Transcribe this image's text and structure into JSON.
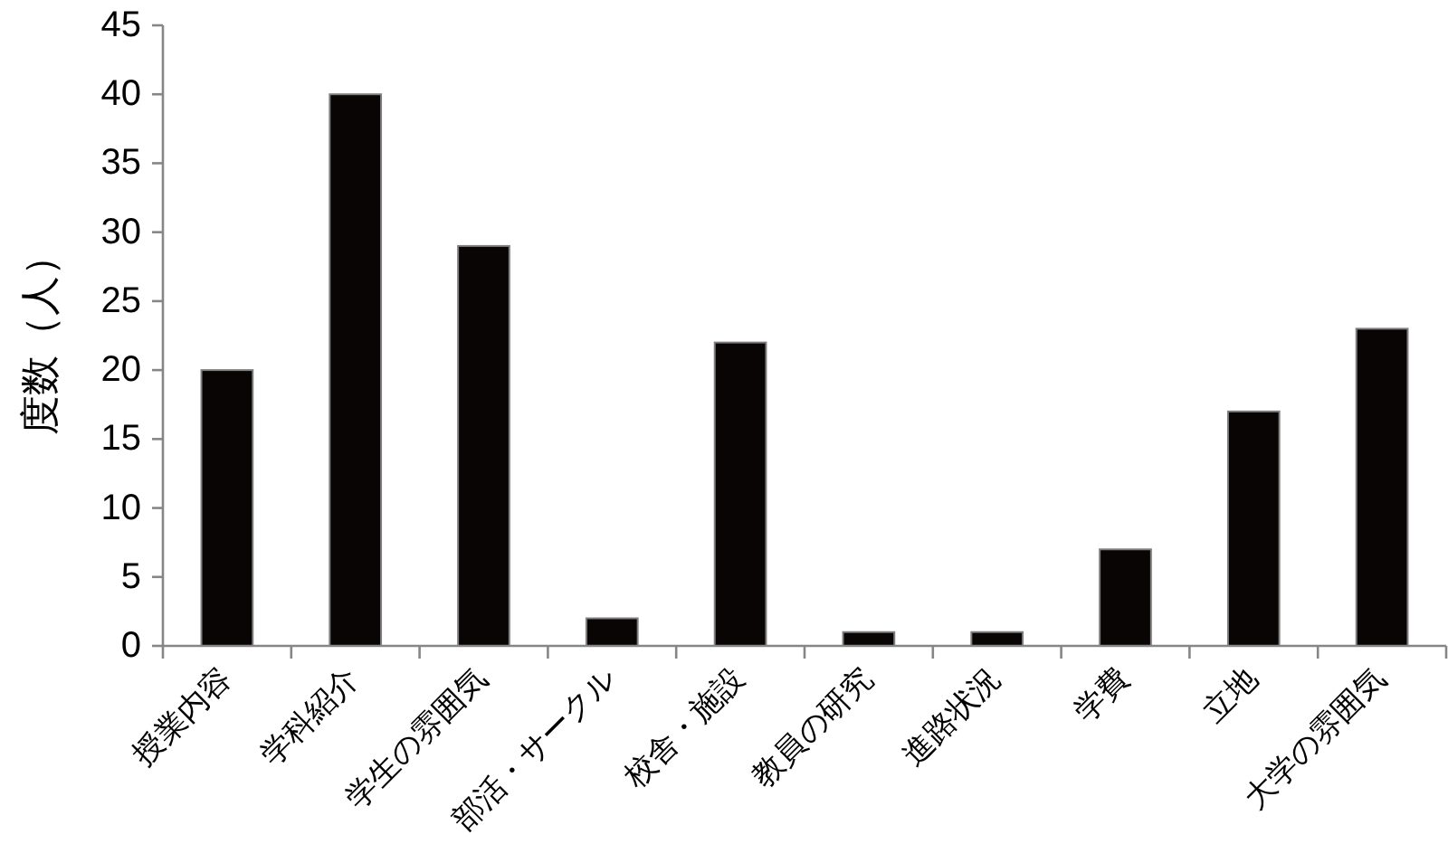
{
  "chart_data": {
    "type": "bar",
    "ylabel": "度数（人）",
    "categories": [
      "授業内容",
      "学科紹介",
      "学生の雰囲気",
      "部活・サークル",
      "校舎・施設",
      "教員の研究",
      "進路状況",
      "学費",
      "立地",
      "大学の雰囲気"
    ],
    "values": [
      20,
      40,
      29,
      2,
      22,
      1,
      1,
      7,
      17,
      23
    ],
    "color": "#080504",
    "ylim": [
      0,
      45
    ],
    "yticks": [
      0,
      5,
      10,
      15,
      20,
      25,
      30,
      35,
      40,
      45
    ]
  }
}
